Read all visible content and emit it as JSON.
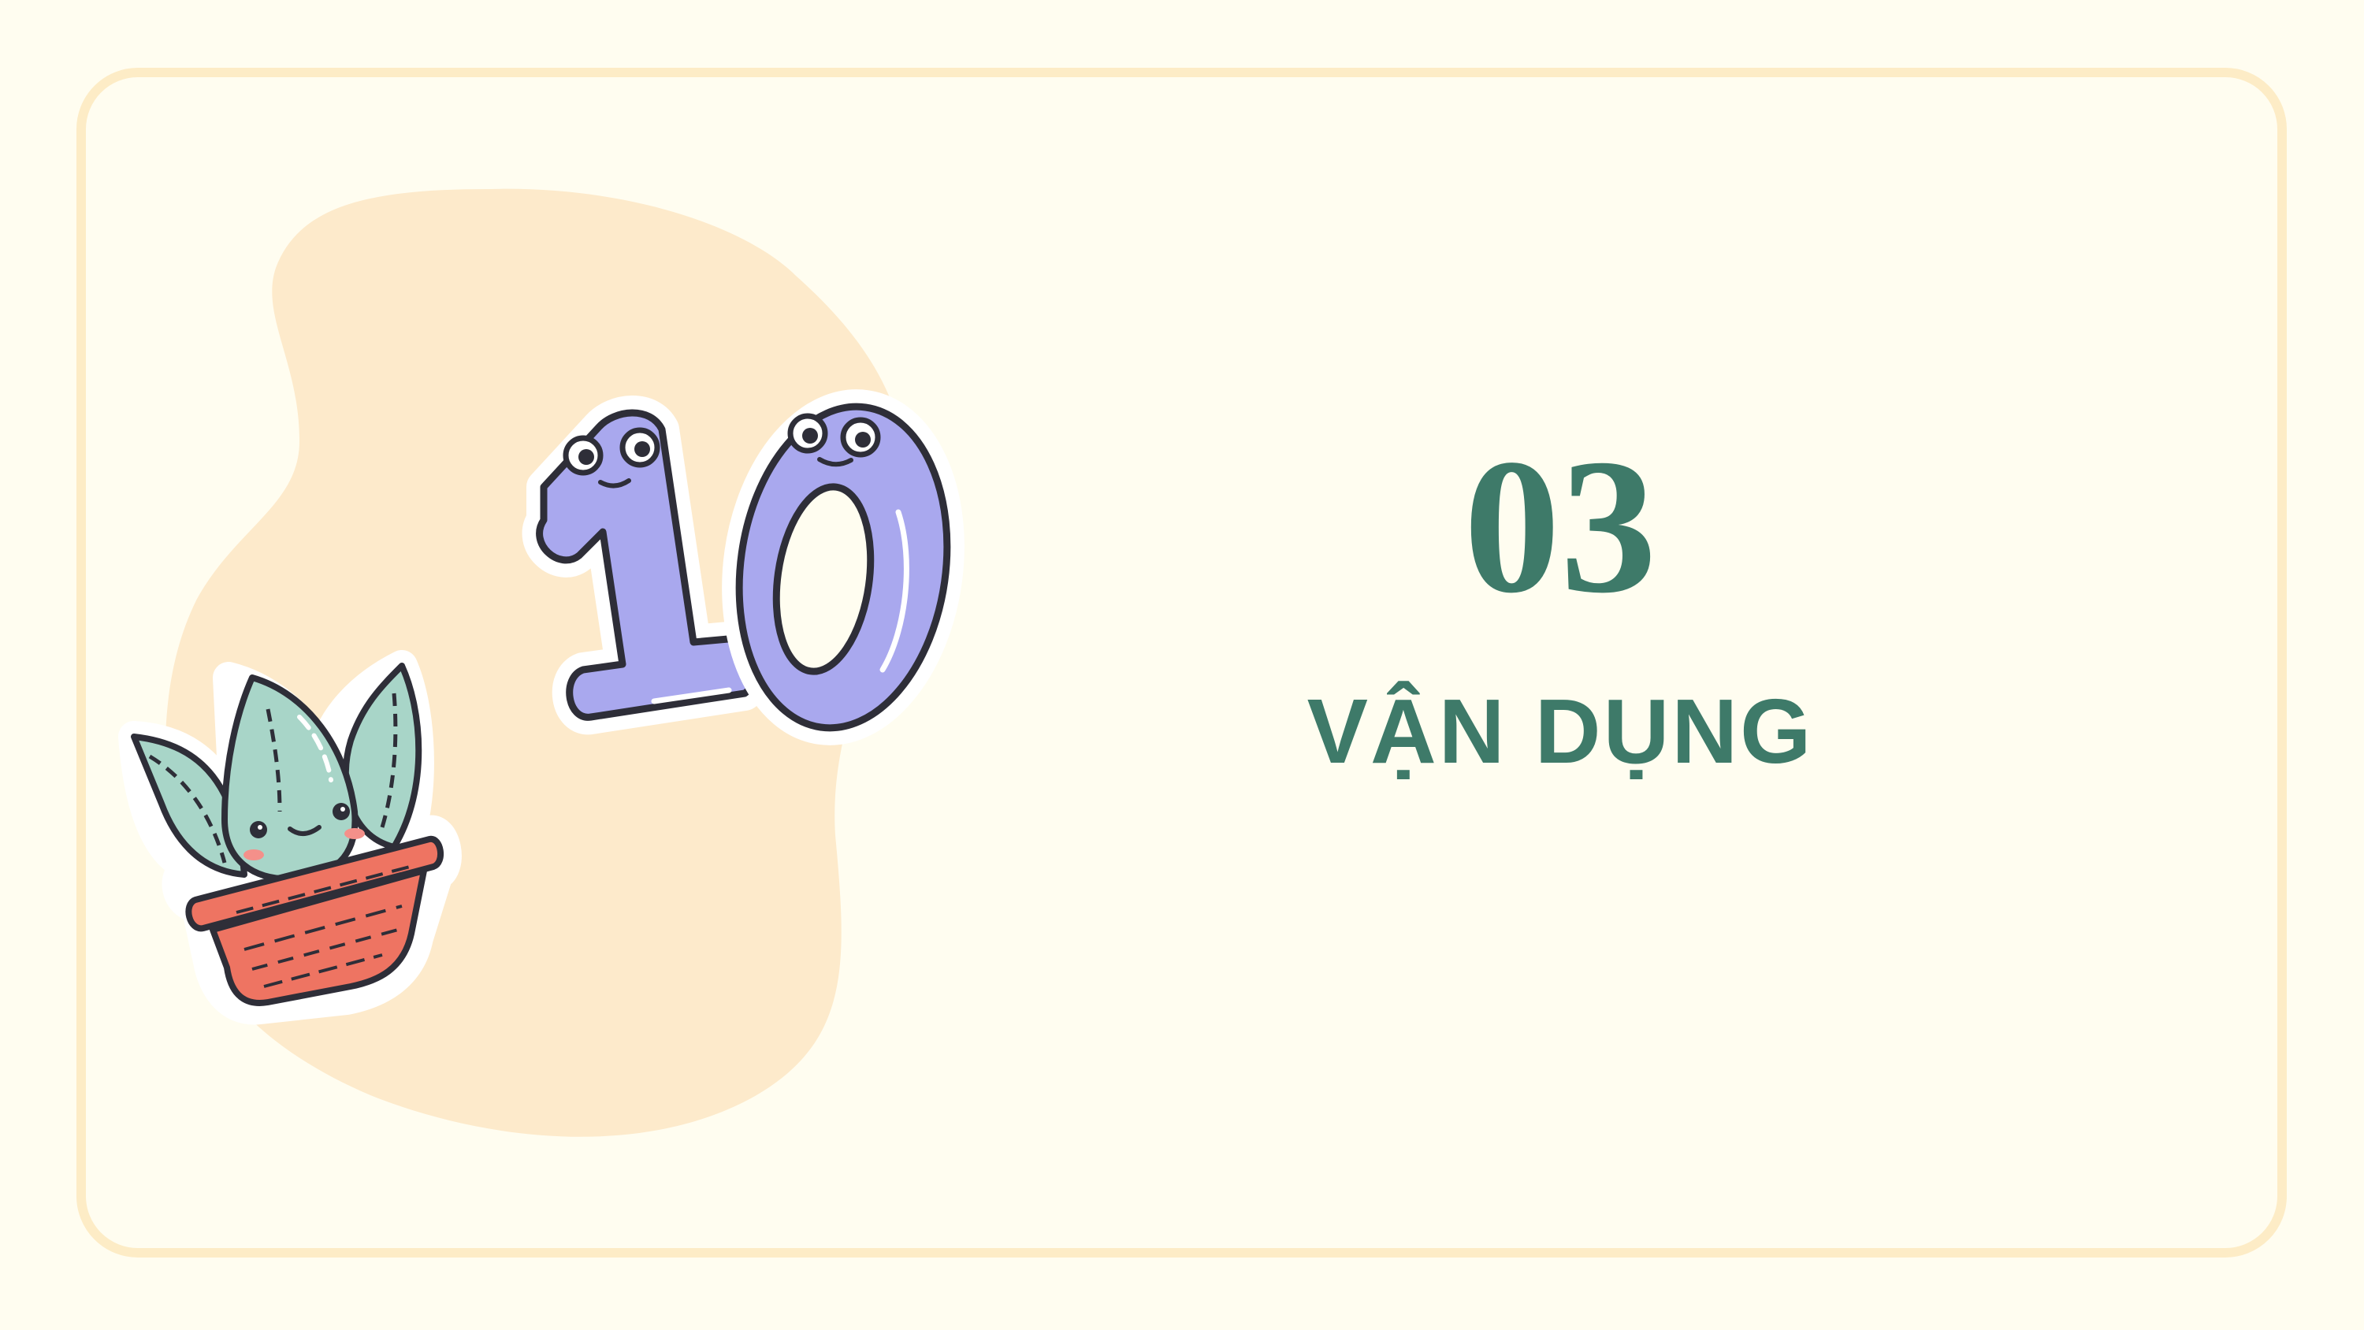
{
  "slide": {
    "section_number": "03",
    "section_title": "VẬN DỤNG"
  },
  "colors": {
    "background": "#fffdf0",
    "frame_border": "#fdecc6",
    "blob": "#fdeacb",
    "title_text": "#3e7a69",
    "number_sticker_fill": "#a9a8ee",
    "leaf_fill": "#a8d5c8",
    "pot_fill": "#ee7462",
    "outline": "#2e2e38"
  },
  "illustrations": [
    {
      "name": "number-ten-sticker",
      "icon": "number-10-character"
    },
    {
      "name": "potted-plant-sticker",
      "icon": "smiling-plant-pot"
    }
  ]
}
